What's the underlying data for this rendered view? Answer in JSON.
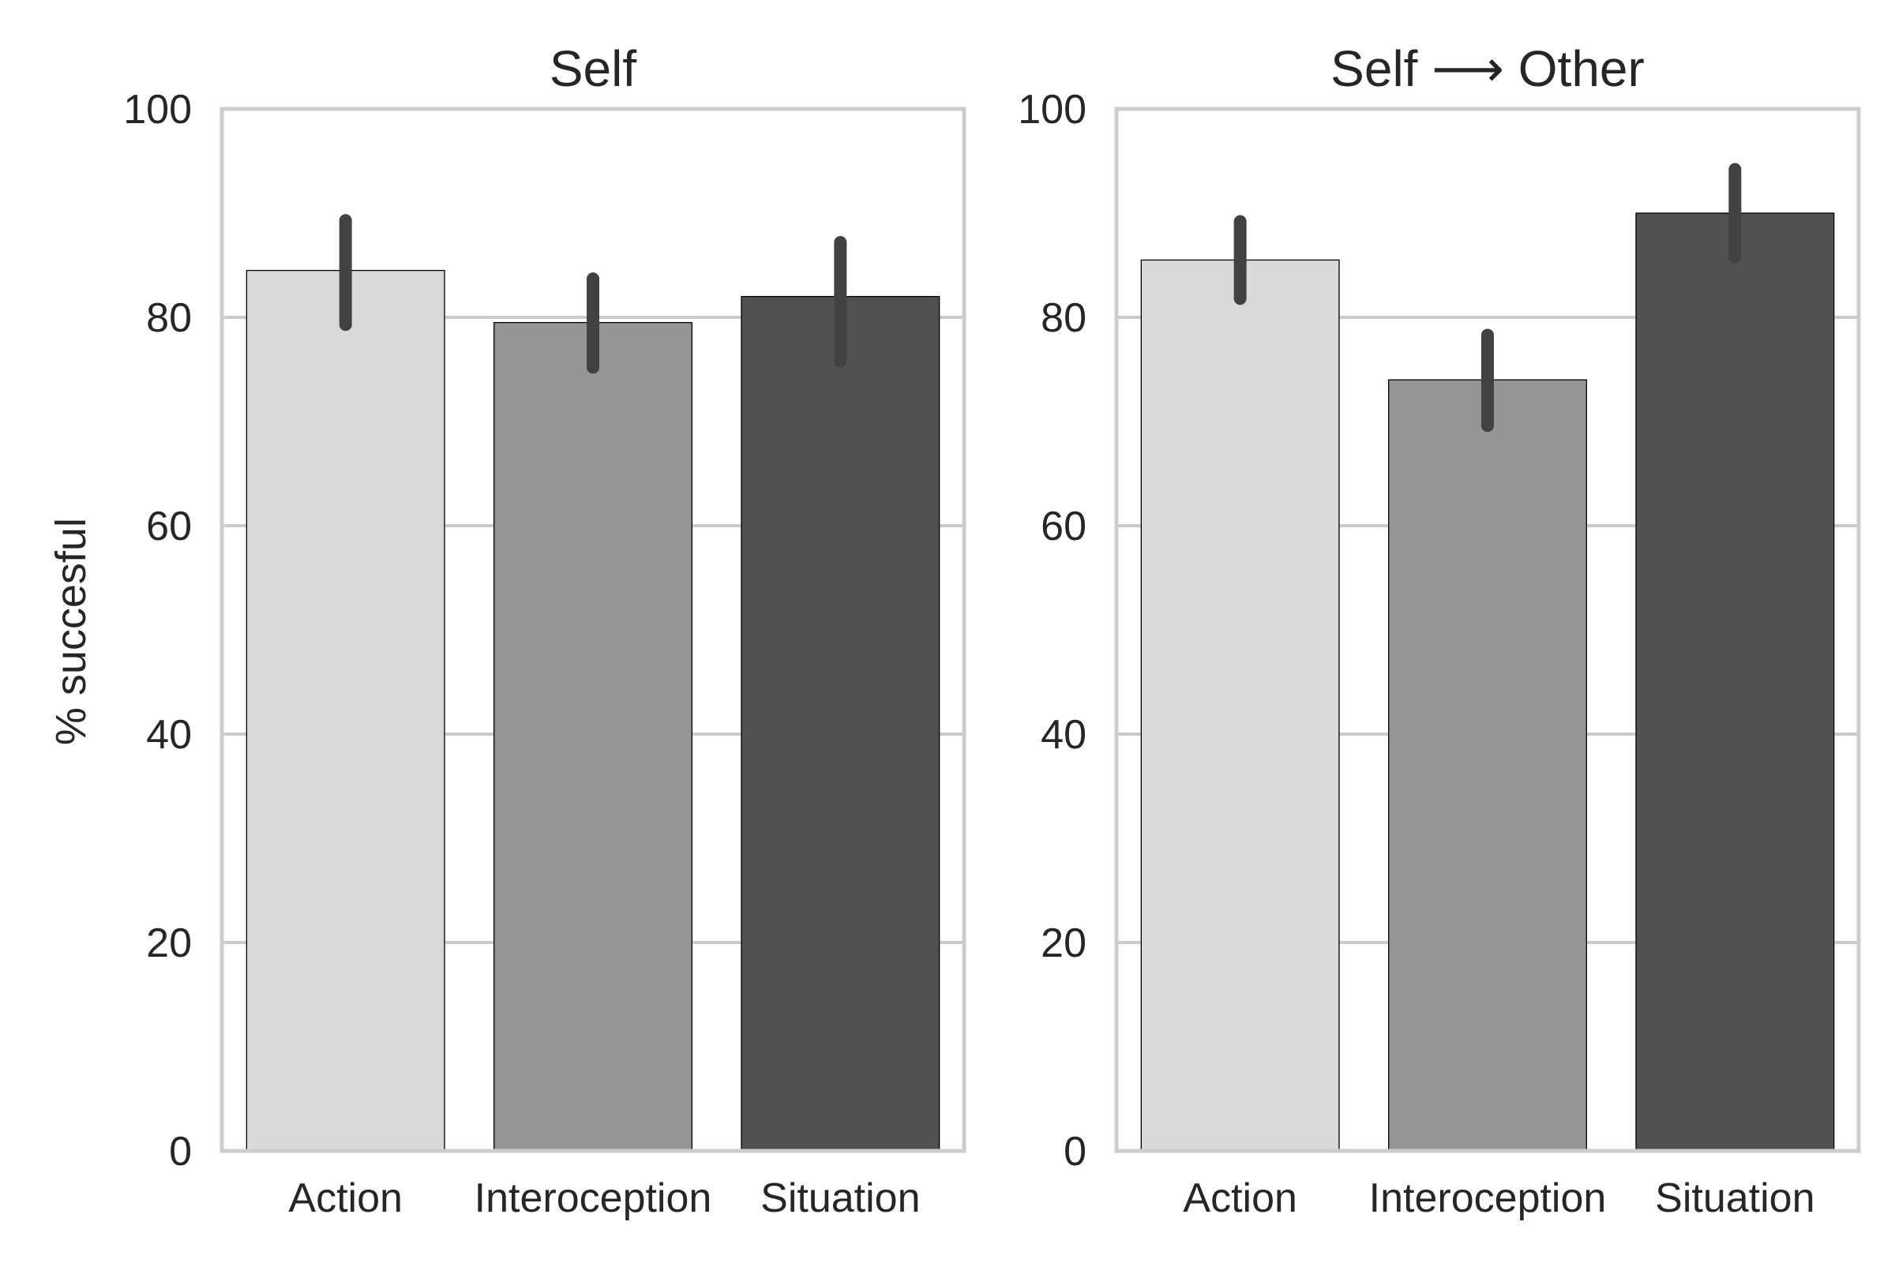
{
  "figure": {
    "ylabel": "% succesful"
  },
  "chart_data": [
    {
      "type": "bar",
      "title": "Self",
      "categories": [
        "Action",
        "Interoception",
        "Situation"
      ],
      "values": [
        84.5,
        79.5,
        82
      ],
      "error_bars": [
        [
          79.3,
          89.3
        ],
        [
          75.2,
          83.7
        ],
        [
          75.8,
          87.2
        ]
      ],
      "ylabel": "% succesful",
      "xlabel": "",
      "ylim": [
        0,
        100
      ],
      "yticks": [
        "0",
        "20",
        "40",
        "60",
        "80",
        "100"
      ],
      "grid": true,
      "bar_colors": [
        "#d9d9d9",
        "#959595",
        "#515151"
      ],
      "errorbar_color": "#424242"
    },
    {
      "type": "bar",
      "title": "Self ⟶ Other",
      "categories": [
        "Action",
        "Interoception",
        "Situation"
      ],
      "values": [
        85.5,
        74,
        90
      ],
      "error_bars": [
        [
          81.8,
          89.2
        ],
        [
          69.6,
          78.3
        ],
        [
          85.8,
          94.2
        ]
      ],
      "ylabel": "",
      "xlabel": "",
      "ylim": [
        0,
        100
      ],
      "yticks": [
        "0",
        "20",
        "40",
        "60",
        "80",
        "100"
      ],
      "grid": true,
      "bar_colors": [
        "#d9d9d9",
        "#959595",
        "#515151"
      ],
      "errorbar_color": "#424242"
    }
  ]
}
